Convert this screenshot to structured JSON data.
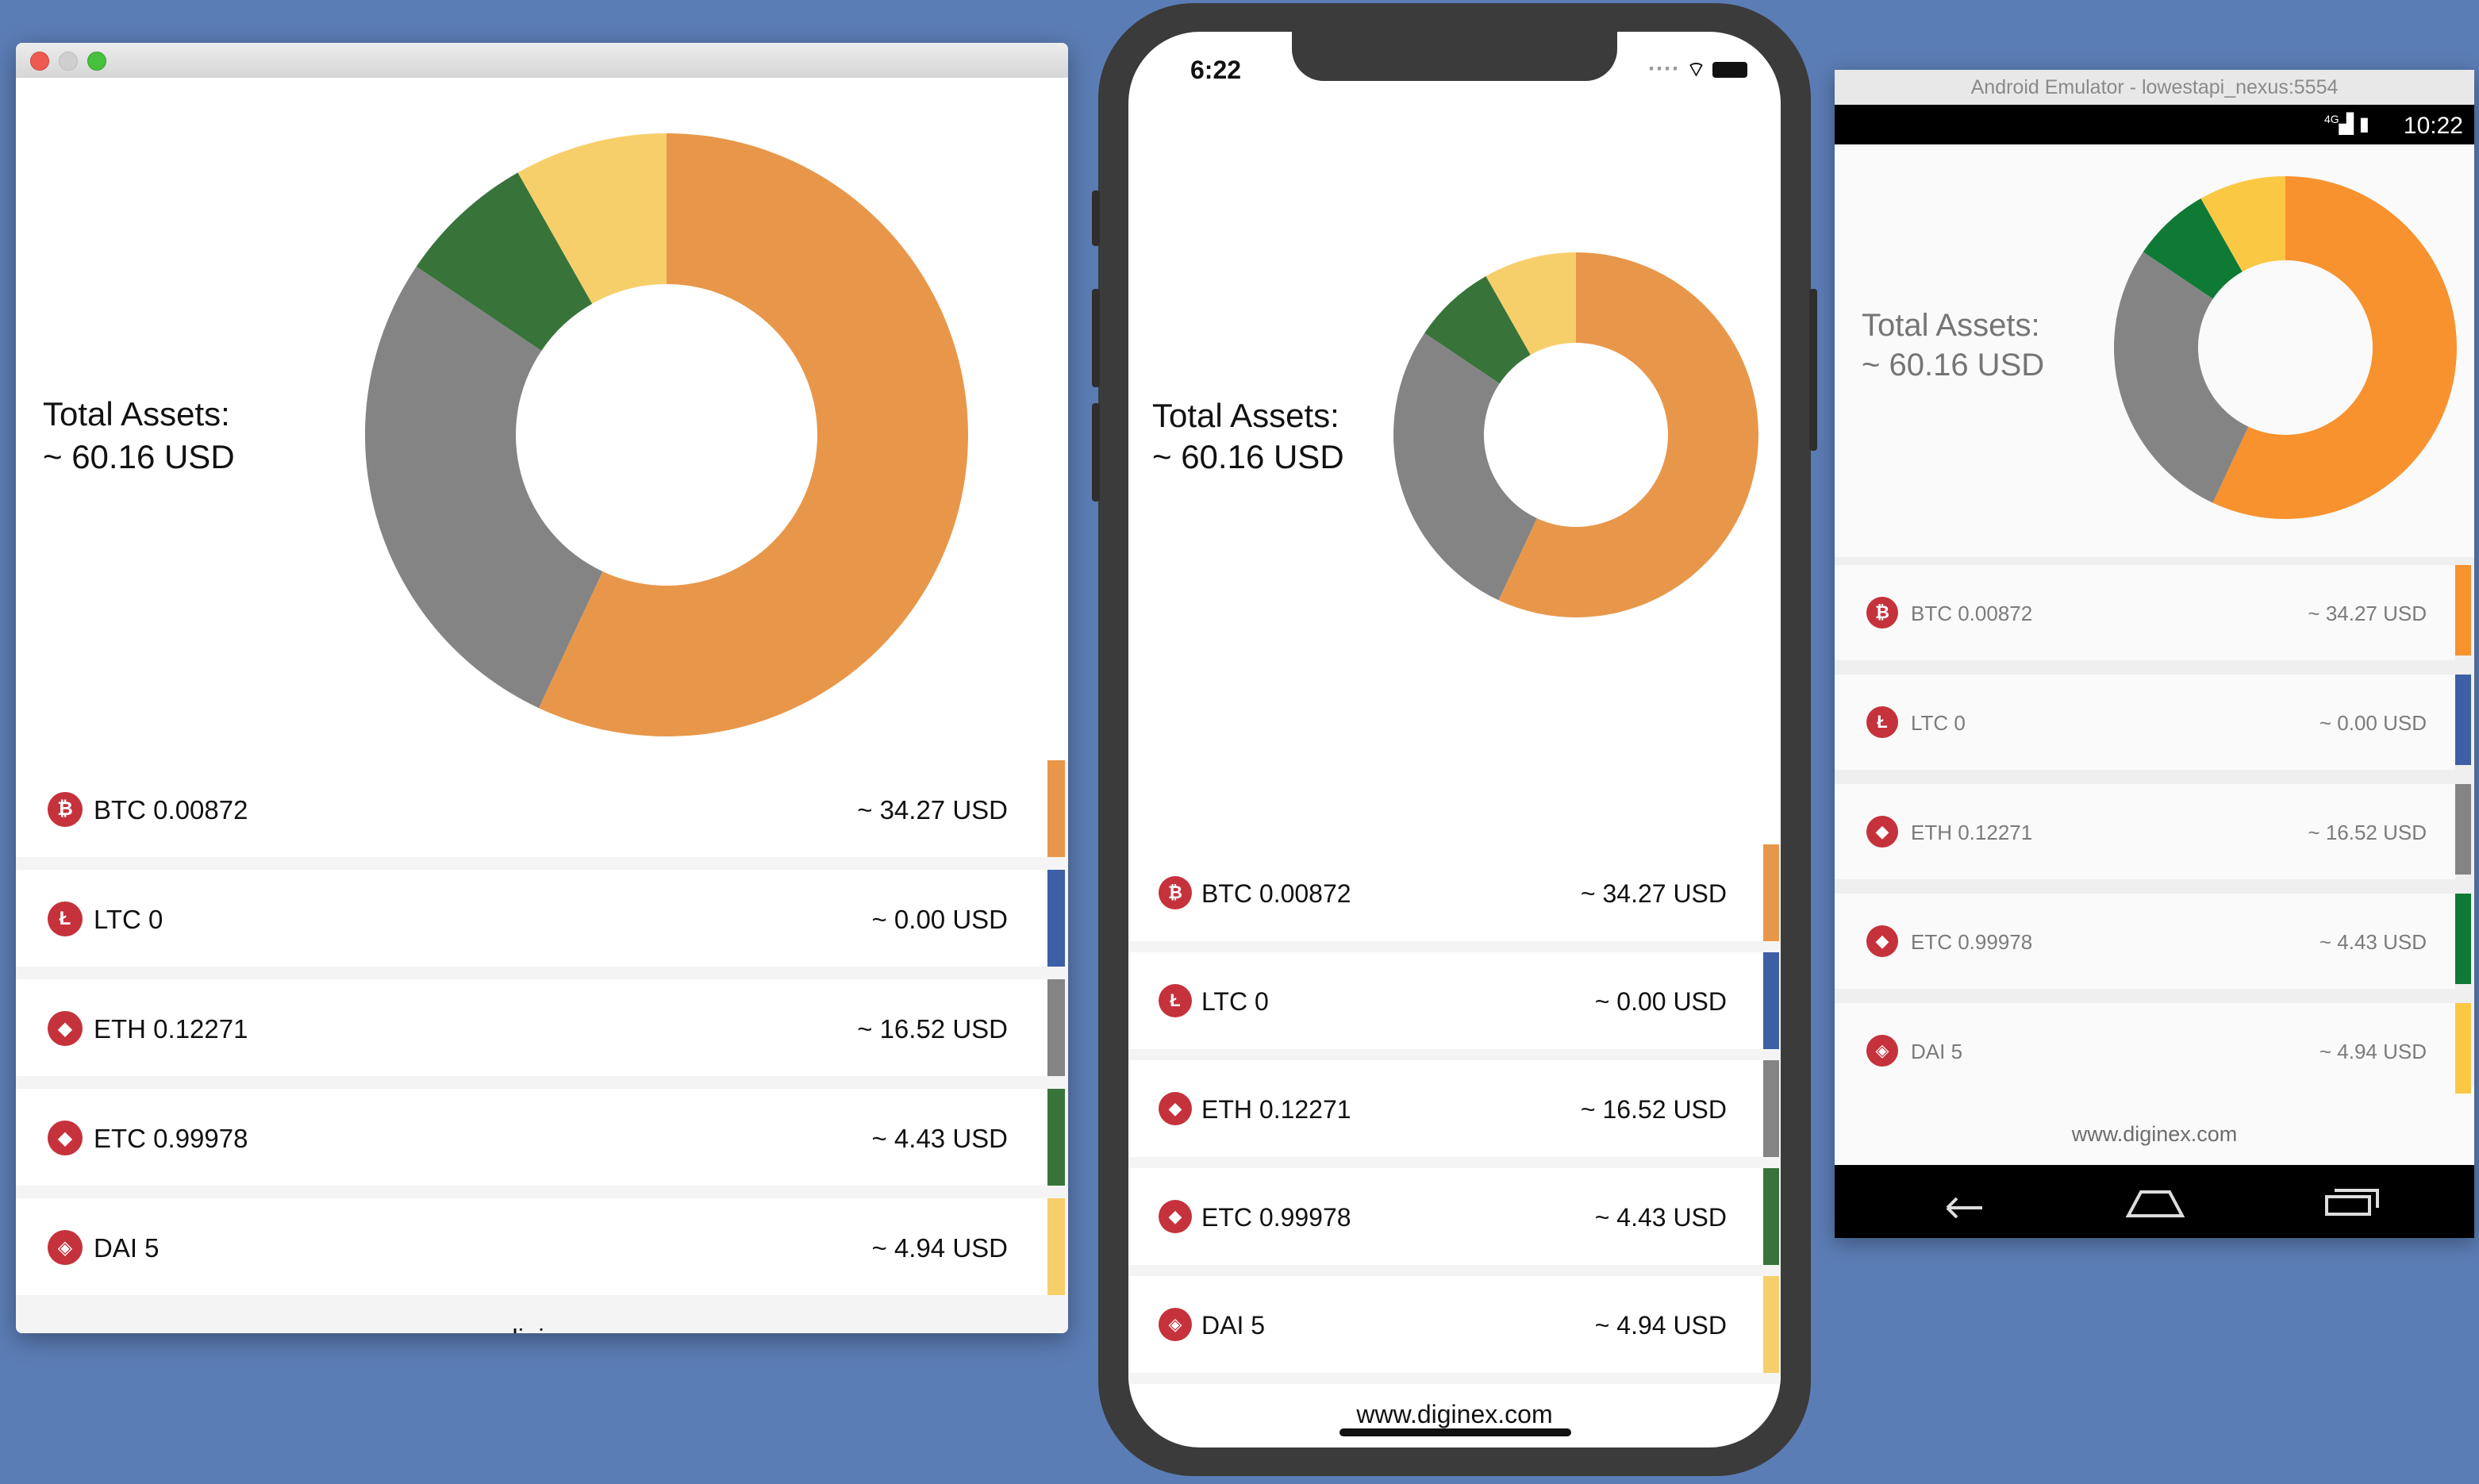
{
  "total": {
    "label": "Total Assets:",
    "value": "~ 60.16 USD"
  },
  "chart_data": {
    "type": "pie",
    "style": "donut",
    "categories": [
      "BTC",
      "LTC",
      "ETH",
      "ETC",
      "DAI"
    ],
    "values": [
      34.27,
      0.0,
      16.52,
      4.43,
      4.94
    ],
    "series": [
      {
        "values": [
          34.27,
          0.0,
          16.52,
          4.43,
          4.94
        ]
      }
    ]
  },
  "assets": [
    {
      "symbol": "BTC",
      "label": "BTC 0.00872",
      "value": "~ 34.27 USD",
      "icon": "bitcoin-icon",
      "glyph": "₿",
      "color": "#e8974a",
      "android_color": "#f7922e"
    },
    {
      "symbol": "LTC",
      "label": "LTC 0",
      "value": "~ 0.00 USD",
      "icon": "litecoin-icon",
      "glyph": "Ł",
      "color": "#3d5fa5",
      "android_color": "#3d5fa5"
    },
    {
      "symbol": "ETH",
      "label": "ETH 0.12271",
      "value": "~ 16.52 USD",
      "icon": "ethereum-icon",
      "glyph": "◆",
      "color": "#848484",
      "android_color": "#848484"
    },
    {
      "symbol": "ETC",
      "label": "ETC 0.99978",
      "value": "~ 4.43 USD",
      "icon": "ethereum-classic-icon",
      "glyph": "◆",
      "color": "#38743a",
      "android_color": "#0f7a36"
    },
    {
      "symbol": "DAI",
      "label": "DAI 5",
      "value": "~ 4.94 USD",
      "icon": "dai-icon",
      "glyph": "◈",
      "color": "#f7cf6a",
      "android_color": "#fbc844"
    }
  ],
  "footer": {
    "url": "www.diginex.com"
  },
  "ios": {
    "time": "6:22"
  },
  "android": {
    "window_title": "Android Emulator - lowestapi_nexus:5554",
    "time": "10:22",
    "signal": "4G"
  }
}
